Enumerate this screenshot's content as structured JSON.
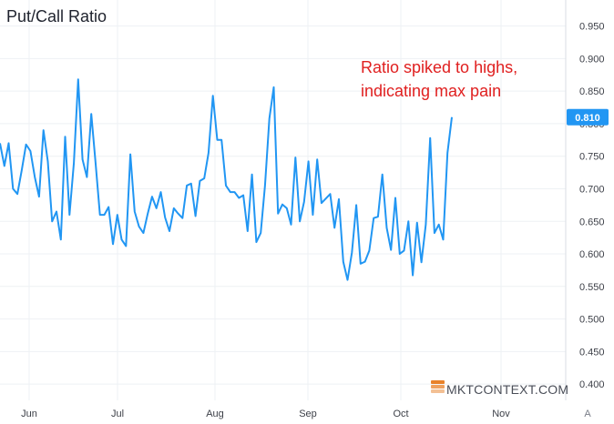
{
  "chart_data": {
    "type": "line",
    "title": "Put/Call Ratio",
    "annotation": [
      "Ratio spiked to highs,",
      "indicating max pain"
    ],
    "ylim": [
      0.375,
      0.99
    ],
    "y_ticks": [
      "0.400",
      "0.450",
      "0.500",
      "0.550",
      "0.600",
      "0.650",
      "0.700",
      "0.750",
      "0.800",
      "0.850",
      "0.900",
      "0.950"
    ],
    "x_ticks": [
      "Jun",
      "Jul",
      "Aug",
      "Sep",
      "Oct",
      "Nov"
    ],
    "last_value_label": "0.810",
    "corner_label": "A",
    "watermark": "MKTCONTEXT.COM",
    "grid": true,
    "series": [
      {
        "values": [
          0.77,
          0.735,
          0.77,
          0.7,
          0.692,
          0.728,
          0.768,
          0.758,
          0.718,
          0.688,
          0.79,
          0.742,
          0.65,
          0.665,
          0.622,
          0.78,
          0.66,
          0.74,
          0.868,
          0.745,
          0.718,
          0.815,
          0.74,
          0.66,
          0.66,
          0.672,
          0.615,
          0.66,
          0.622,
          0.612,
          0.753,
          0.665,
          0.642,
          0.632,
          0.662,
          0.688,
          0.67,
          0.695,
          0.656,
          0.635,
          0.67,
          0.662,
          0.655,
          0.705,
          0.708,
          0.658,
          0.712,
          0.716,
          0.755,
          0.843,
          0.775,
          0.775,
          0.705,
          0.695,
          0.695,
          0.686,
          0.69,
          0.635,
          0.722,
          0.618,
          0.632,
          0.705,
          0.808,
          0.856,
          0.662,
          0.676,
          0.67,
          0.645,
          0.748,
          0.65,
          0.68,
          0.742,
          0.66,
          0.745,
          0.678,
          0.685,
          0.692,
          0.64,
          0.684,
          0.588,
          0.56,
          0.602,
          0.675,
          0.585,
          0.588,
          0.605,
          0.655,
          0.657,
          0.722,
          0.64,
          0.606,
          0.686,
          0.6,
          0.605,
          0.65,
          0.567,
          0.648,
          0.587,
          0.645,
          0.778,
          0.632,
          0.645,
          0.622,
          0.755,
          0.81
        ]
      }
    ],
    "colors": {
      "line": "#2196f3",
      "annotation": "#e02020",
      "label_bg": "#2196f3",
      "label_text": "#ffffff",
      "grid": "#eef1f4",
      "watermark_icon": "#e8822a"
    }
  }
}
